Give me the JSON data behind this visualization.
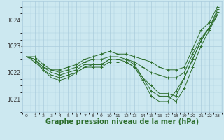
{
  "background_color": "#cce8f0",
  "grid_color": "#aaccdd",
  "line_color": "#2d6e2d",
  "xlabel": "Graphe pression niveau de la mer (hPa)",
  "xlabel_fontsize": 7,
  "ylabel_values": [
    1021,
    1022,
    1023,
    1024
  ],
  "xlim": [
    -0.5,
    23.5
  ],
  "ylim": [
    1020.5,
    1024.7
  ],
  "series": [
    [
      1022.6,
      1022.6,
      1022.3,
      1022.1,
      1022.1,
      1022.2,
      1022.3,
      1022.5,
      1022.6,
      1022.7,
      1022.8,
      1022.7,
      1022.7,
      1022.6,
      1022.5,
      1022.4,
      1022.2,
      1022.1,
      1022.1,
      1022.2,
      1022.9,
      1023.6,
      1023.9,
      1024.5
    ],
    [
      1022.6,
      1022.5,
      1022.2,
      1022.1,
      1022.0,
      1022.1,
      1022.2,
      1022.4,
      1022.5,
      1022.5,
      1022.6,
      1022.6,
      1022.5,
      1022.4,
      1022.2,
      1022.0,
      1021.9,
      1021.8,
      1021.8,
      1022.0,
      1022.7,
      1023.3,
      1023.7,
      1024.4
    ],
    [
      1022.6,
      1022.5,
      1022.2,
      1022.0,
      1021.9,
      1022.0,
      1022.1,
      1022.3,
      1022.3,
      1022.3,
      1022.5,
      1022.5,
      1022.4,
      1022.2,
      1021.8,
      1021.5,
      1021.2,
      1021.2,
      1021.1,
      1021.8,
      1022.5,
      1023.2,
      1023.7,
      1024.3
    ],
    [
      1022.6,
      1022.5,
      1022.1,
      1021.9,
      1021.8,
      1021.9,
      1022.0,
      1022.2,
      1022.3,
      1022.3,
      1022.5,
      1022.5,
      1022.5,
      1022.3,
      1021.8,
      1021.3,
      1021.1,
      1021.1,
      1020.9,
      1021.4,
      1022.2,
      1023.0,
      1023.6,
      1024.2
    ],
    [
      1022.6,
      1022.4,
      1022.1,
      1021.8,
      1021.7,
      1021.8,
      1022.0,
      1022.2,
      1022.2,
      1022.2,
      1022.4,
      1022.4,
      1022.4,
      1022.2,
      1021.7,
      1021.1,
      1020.9,
      1020.9,
      1021.3,
      1021.8,
      1022.5,
      1023.2,
      1023.7,
      1024.2
    ]
  ]
}
